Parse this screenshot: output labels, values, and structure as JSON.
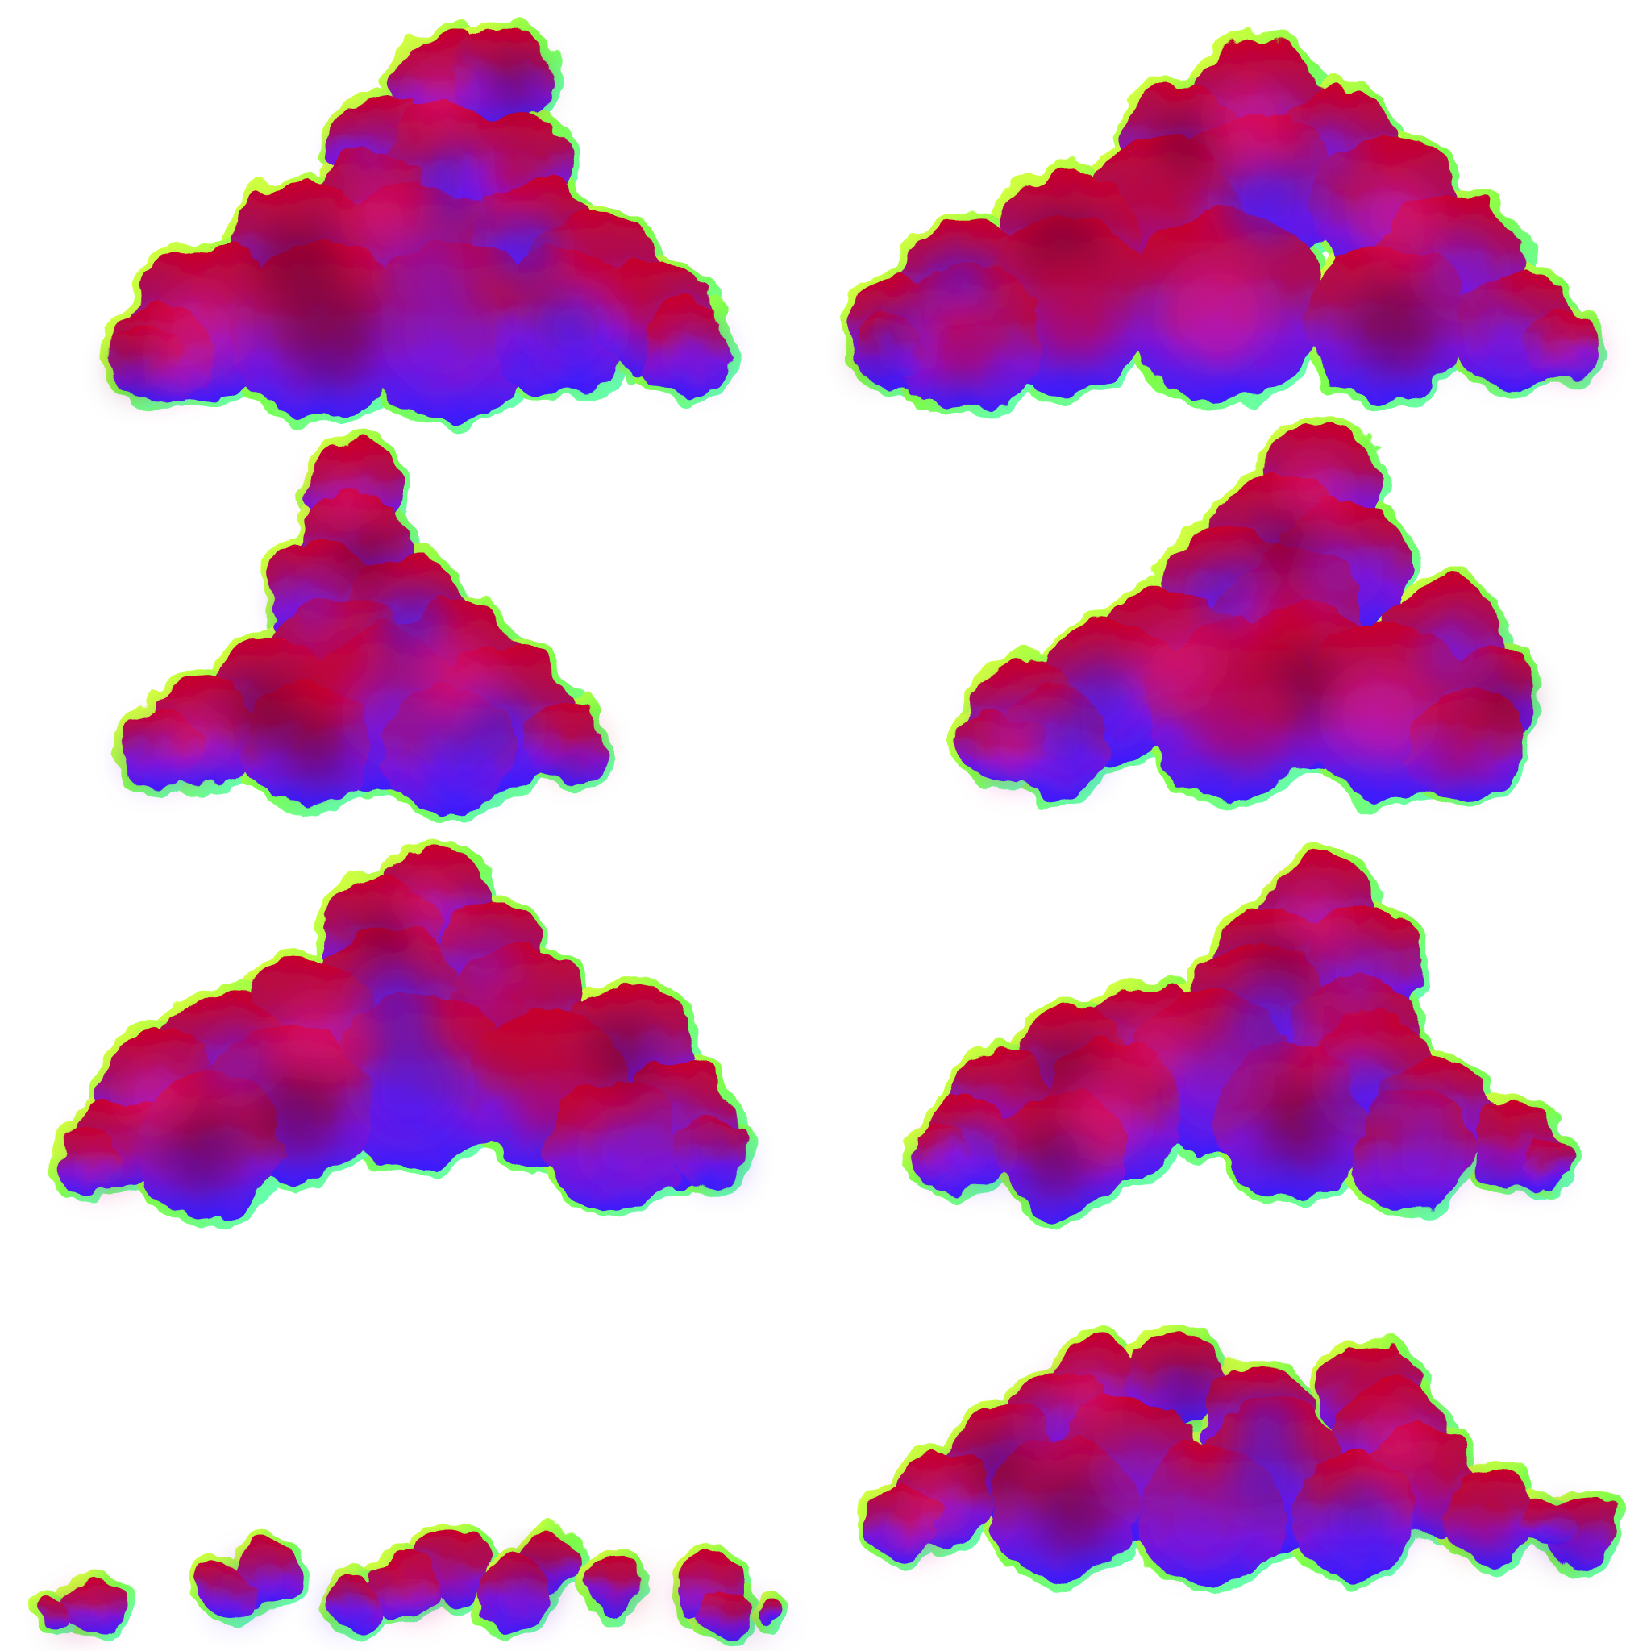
{
  "sheet": {
    "background": "#ffffff",
    "cloud_count": 8,
    "palette": {
      "rim_yellow": "#f4ff3a",
      "rim_green": "#7dff4a",
      "rim_cyan": "#5cffd9",
      "top_red": "#c8002a",
      "dark_maroon": "#6a0038",
      "magenta": "#e0148c",
      "violet": "#7a18d8",
      "base_blue": "#3a1cff"
    },
    "clouds": [
      {
        "name": "cloud-tall-top-left",
        "style": "cumulus-tower"
      },
      {
        "name": "cloud-wide-top-right",
        "style": "cumulus-broad"
      },
      {
        "name": "cloud-wedge-mid-left",
        "style": "cumulus-wedge"
      },
      {
        "name": "cloud-tower-mid-right",
        "style": "cumulus-tower"
      },
      {
        "name": "cloud-large-left",
        "style": "cumulus-broad"
      },
      {
        "name": "cloud-large-right",
        "style": "cumulus-broad"
      },
      {
        "name": "cloud-strip-bottom-left",
        "style": "stratus-strip"
      },
      {
        "name": "cloud-wide-bottom-right",
        "style": "cumulus-broad"
      }
    ]
  }
}
